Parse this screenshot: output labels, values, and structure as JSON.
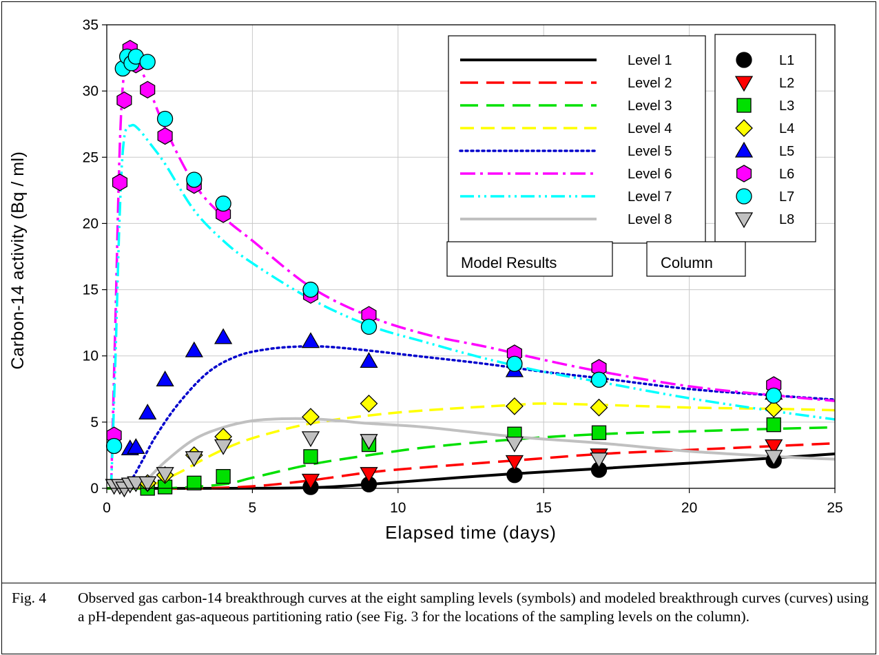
{
  "chart_data": {
    "type": "scatter",
    "xlabel": "Elapsed time (days)",
    "ylabel": "Carbon-14 activity (Bq / ml)",
    "xlim": [
      0,
      25
    ],
    "ylim": [
      0,
      35
    ],
    "xticks": [
      0,
      5,
      10,
      15,
      20,
      25
    ],
    "yticks": [
      0,
      5,
      10,
      15,
      20,
      25,
      30,
      35
    ],
    "grid": true,
    "legend_model_title": "Model Results",
    "legend_column_title": "Column",
    "model_series": [
      {
        "name": "Level 1",
        "color": "#000000",
        "dash": "solid",
        "points": [
          [
            0,
            0
          ],
          [
            4,
            0
          ],
          [
            7,
            0.05
          ],
          [
            9,
            0.3
          ],
          [
            12,
            0.8
          ],
          [
            14,
            1.1
          ],
          [
            17,
            1.5
          ],
          [
            20,
            1.9
          ],
          [
            23,
            2.3
          ],
          [
            25,
            2.6
          ]
        ]
      },
      {
        "name": "Level 2",
        "color": "#ff0000",
        "dash": "long-dash",
        "points": [
          [
            0,
            0
          ],
          [
            3,
            0
          ],
          [
            5,
            0.15
          ],
          [
            7,
            0.6
          ],
          [
            9,
            1.2
          ],
          [
            11,
            1.6
          ],
          [
            14,
            2.1
          ],
          [
            17,
            2.6
          ],
          [
            20,
            2.9
          ],
          [
            23,
            3.2
          ],
          [
            25,
            3.4
          ]
        ]
      },
      {
        "name": "Level 3",
        "color": "#00e000",
        "dash": "long-dash",
        "points": [
          [
            0,
            0
          ],
          [
            2,
            0
          ],
          [
            4,
            0.3
          ],
          [
            5,
            0.8
          ],
          [
            7,
            1.8
          ],
          [
            9,
            2.5
          ],
          [
            11,
            3.1
          ],
          [
            14,
            3.7
          ],
          [
            17,
            4.1
          ],
          [
            20,
            4.3
          ],
          [
            23,
            4.5
          ],
          [
            25,
            4.6
          ]
        ]
      },
      {
        "name": "Level 4",
        "color": "#ffff00",
        "dash": "dash",
        "points": [
          [
            0.9,
            0
          ],
          [
            1.5,
            0.2
          ],
          [
            2.5,
            1.2
          ],
          [
            3.5,
            2.4
          ],
          [
            4.5,
            3.4
          ],
          [
            5.5,
            4.1
          ],
          [
            7,
            4.9
          ],
          [
            9,
            5.5
          ],
          [
            11,
            5.9
          ],
          [
            14,
            6.3
          ],
          [
            15,
            6.4
          ],
          [
            17,
            6.3
          ],
          [
            20,
            6.1
          ],
          [
            23,
            6.0
          ],
          [
            25,
            5.9
          ]
        ]
      },
      {
        "name": "Level 5",
        "color": "#0000cc",
        "dash": "dot",
        "points": [
          [
            0.5,
            0
          ],
          [
            0.8,
            0.5
          ],
          [
            1.2,
            2.0
          ],
          [
            1.7,
            4.0
          ],
          [
            2.5,
            6.5
          ],
          [
            3.5,
            8.8
          ],
          [
            4.5,
            10.0
          ],
          [
            5.5,
            10.5
          ],
          [
            6.5,
            10.7
          ],
          [
            7.5,
            10.7
          ],
          [
            9,
            10.4
          ],
          [
            11,
            9.9
          ],
          [
            13,
            9.4
          ],
          [
            15,
            8.8
          ],
          [
            17,
            8.3
          ],
          [
            20,
            7.5
          ],
          [
            23,
            7.0
          ],
          [
            25,
            6.7
          ]
        ]
      },
      {
        "name": "Level 6",
        "color": "#ff00ff",
        "dash": "dash-dot",
        "points": [
          [
            0.15,
            0
          ],
          [
            0.3,
            13
          ],
          [
            0.45,
            26
          ],
          [
            0.6,
            31.5
          ],
          [
            0.8,
            32.7
          ],
          [
            1.0,
            32.4
          ],
          [
            1.4,
            30.5
          ],
          [
            2,
            27.2
          ],
          [
            3,
            23.0
          ],
          [
            4,
            20.5
          ],
          [
            5,
            18.7
          ],
          [
            7,
            15.2
          ],
          [
            9,
            13.0
          ],
          [
            11,
            11.6
          ],
          [
            13,
            10.7
          ],
          [
            15,
            9.7
          ],
          [
            17,
            8.8
          ],
          [
            20,
            7.7
          ],
          [
            23,
            7.0
          ],
          [
            25,
            6.6
          ]
        ]
      },
      {
        "name": "Level 7",
        "color": "#00ffff",
        "dash": "dash-dot-dot",
        "points": [
          [
            0.15,
            0
          ],
          [
            0.3,
            10
          ],
          [
            0.45,
            21
          ],
          [
            0.6,
            26.5
          ],
          [
            0.85,
            27.4
          ],
          [
            1.1,
            27.1
          ],
          [
            1.5,
            26.0
          ],
          [
            2,
            24.5
          ],
          [
            3,
            21.0
          ],
          [
            4,
            18.7
          ],
          [
            5,
            17.0
          ],
          [
            7,
            14.3
          ],
          [
            9,
            12.3
          ],
          [
            11,
            11.0
          ],
          [
            13,
            9.8
          ],
          [
            15,
            8.8
          ],
          [
            17,
            8.0
          ],
          [
            20,
            6.8
          ],
          [
            23,
            5.8
          ],
          [
            25,
            5.2
          ]
        ]
      },
      {
        "name": "Level 8",
        "color": "#c0c0c0",
        "dash": "solid",
        "points": [
          [
            0.9,
            0
          ],
          [
            1.3,
            0.5
          ],
          [
            2,
            2.0
          ],
          [
            3,
            3.7
          ],
          [
            4,
            4.6
          ],
          [
            5,
            5.1
          ],
          [
            6,
            5.25
          ],
          [
            7,
            5.25
          ],
          [
            8,
            5.1
          ],
          [
            9,
            4.9
          ],
          [
            11,
            4.6
          ],
          [
            14,
            3.9
          ],
          [
            17,
            3.4
          ],
          [
            20,
            2.8
          ],
          [
            23,
            2.4
          ],
          [
            25,
            2.2
          ]
        ]
      }
    ],
    "observed_series": [
      {
        "name": "L1",
        "color": "#000000",
        "marker": "circle",
        "points": [
          [
            7,
            0.1
          ],
          [
            9,
            0.3
          ],
          [
            14,
            1.0
          ],
          [
            16.9,
            1.4
          ],
          [
            22.9,
            2.1
          ]
        ]
      },
      {
        "name": "L2",
        "color": "#ff0000",
        "marker": "triangle-down",
        "points": [
          [
            7,
            0.6
          ],
          [
            9,
            1.1
          ],
          [
            14,
            2.0
          ],
          [
            16.9,
            2.5
          ],
          [
            22.9,
            3.2
          ]
        ]
      },
      {
        "name": "L3",
        "color": "#00e000",
        "marker": "square",
        "points": [
          [
            1.4,
            0
          ],
          [
            2,
            0.1
          ],
          [
            3,
            0.4
          ],
          [
            4,
            0.9
          ],
          [
            7,
            2.4
          ],
          [
            9,
            3.3
          ],
          [
            14,
            4.1
          ],
          [
            16.9,
            4.2
          ],
          [
            22.9,
            4.8
          ]
        ]
      },
      {
        "name": "L4",
        "color": "#ffff00",
        "marker": "diamond",
        "points": [
          [
            1.4,
            0.4
          ],
          [
            2,
            1.0
          ],
          [
            3,
            2.5
          ],
          [
            4,
            3.9
          ],
          [
            7,
            5.4
          ],
          [
            9,
            6.4
          ],
          [
            14,
            6.2
          ],
          [
            16.9,
            6.1
          ],
          [
            22.9,
            6.0
          ]
        ]
      },
      {
        "name": "L5",
        "color": "#0000ff",
        "marker": "triangle-up",
        "points": [
          [
            0.8,
            3.0
          ],
          [
            1.0,
            3.1
          ],
          [
            1.4,
            5.7
          ],
          [
            2,
            8.2
          ],
          [
            3,
            10.4
          ],
          [
            4,
            11.4
          ],
          [
            7,
            11.1
          ],
          [
            9,
            9.6
          ],
          [
            14,
            8.9
          ],
          [
            16.9,
            8.5
          ],
          [
            22.9,
            7.2
          ]
        ]
      },
      {
        "name": "L6",
        "color": "#ff00ff",
        "marker": "hexagon",
        "points": [
          [
            0.25,
            4.0
          ],
          [
            0.45,
            23.1
          ],
          [
            0.6,
            29.3
          ],
          [
            0.8,
            33.2
          ],
          [
            1.0,
            32.0
          ],
          [
            1.4,
            30.1
          ],
          [
            2,
            26.6
          ],
          [
            3,
            22.9
          ],
          [
            4,
            20.7
          ],
          [
            7,
            14.6
          ],
          [
            9,
            13.1
          ],
          [
            14,
            10.2
          ],
          [
            16.9,
            9.1
          ],
          [
            22.9,
            7.8
          ]
        ]
      },
      {
        "name": "L7",
        "color": "#00ffff",
        "marker": "circle",
        "points": [
          [
            0.25,
            3.2
          ],
          [
            0.55,
            31.7
          ],
          [
            0.7,
            32.6
          ],
          [
            0.85,
            32.1
          ],
          [
            1.0,
            32.6
          ],
          [
            1.4,
            32.2
          ],
          [
            2,
            27.9
          ],
          [
            3,
            23.3
          ],
          [
            4,
            21.5
          ],
          [
            7,
            15.0
          ],
          [
            9,
            12.2
          ],
          [
            14,
            9.4
          ],
          [
            16.9,
            8.2
          ],
          [
            22.9,
            7.0
          ]
        ]
      },
      {
        "name": "L8",
        "color": "#c0c0c0",
        "marker": "triangle-down",
        "points": [
          [
            0.25,
            0.2
          ],
          [
            0.45,
            0.2
          ],
          [
            0.6,
            0
          ],
          [
            0.8,
            0.3
          ],
          [
            1.0,
            0.4
          ],
          [
            1.4,
            0.4
          ],
          [
            2,
            1.1
          ],
          [
            3,
            2.3
          ],
          [
            4,
            3.2
          ],
          [
            7,
            3.8
          ],
          [
            9,
            3.6
          ],
          [
            14,
            3.4
          ],
          [
            16.9,
            2.2
          ],
          [
            22.9,
            2.4
          ]
        ]
      }
    ]
  },
  "caption": {
    "label": "Fig. 4",
    "text": "Observed gas carbon-14 breakthrough curves at the eight sampling levels (symbols) and modeled breakthrough curves (curves) using a pH-dependent gas-aqueous partitioning ratio (see Fig. 3 for the locations of the sampling levels on the column)."
  }
}
